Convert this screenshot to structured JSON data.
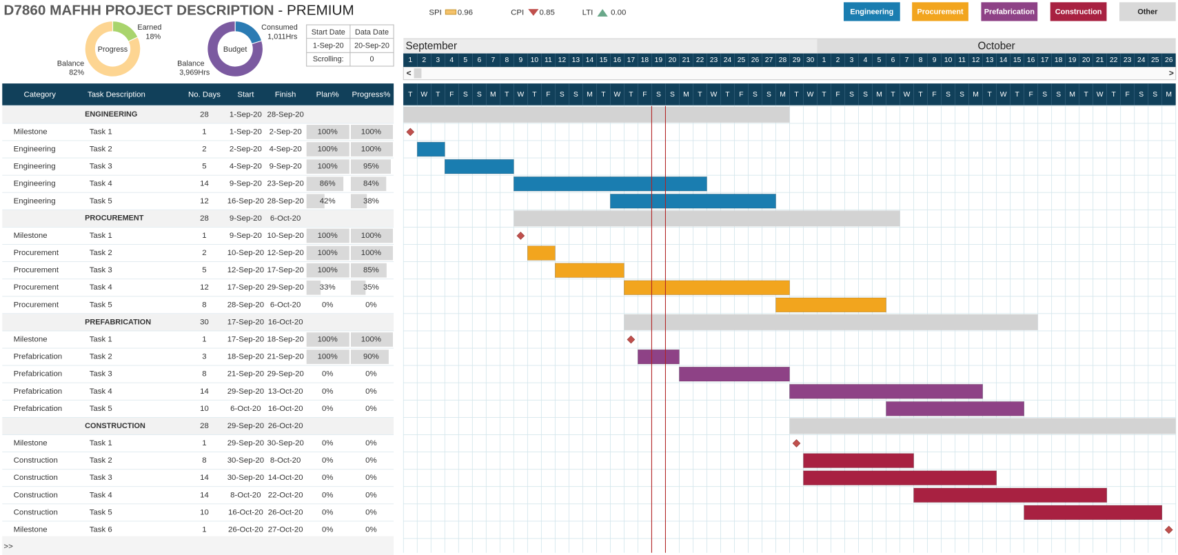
{
  "header": {
    "title": "D7860 MAFHH PROJECT DESCRIPTION",
    "edition": "- PREMIUM"
  },
  "kpis": [
    {
      "label": "SPI",
      "value": "0.96"
    },
    {
      "label": "CPI",
      "value": "0.85"
    },
    {
      "label": "LTI",
      "value": "0.00"
    }
  ],
  "legend": [
    {
      "label": "Engineering",
      "color": "#1a7db0",
      "text_color": "#ffffff"
    },
    {
      "label": "Procurement",
      "color": "#f2a51e",
      "text_color": "#ffffff"
    },
    {
      "label": "Prefabrication",
      "color": "#8e4286",
      "text_color": "#ffffff"
    },
    {
      "label": "Construction",
      "color": "#a82141",
      "text_color": "#ffffff"
    },
    {
      "label": "Other",
      "color": "#d9d9d9",
      "text_color": "#222222"
    }
  ],
  "progress": {
    "title": "Progress",
    "segments": [
      {
        "label": "Earned",
        "value": 18,
        "value_label": "18%",
        "color": "#a9d46c"
      },
      {
        "label": "Balance",
        "value": 82,
        "value_label": "82%",
        "color": "#fdd592"
      }
    ]
  },
  "budget": {
    "title": "Budget",
    "segments": [
      {
        "label": "Consumed",
        "value": 1011,
        "value_label": "1,011Hrs",
        "color": "#2b7bb3"
      },
      {
        "label": "Balance",
        "value": 3969,
        "value_label": "3,969Hrs",
        "color": "#7b5aa0"
      }
    ]
  },
  "info": {
    "headers": [
      "Start Date",
      "Data Date"
    ],
    "values": [
      "1-Sep-20",
      "20-Sep-20"
    ],
    "scrolling_label": "Scrolling:",
    "scrolling": "0"
  },
  "table": {
    "columns": [
      "Category",
      "Task Description",
      "No. Days",
      "Start",
      "Finish",
      "Plan%",
      "Progress%"
    ],
    "groups": [
      {
        "name": "ENGINEERING",
        "days": 28,
        "start": "1-Sep-20",
        "finish": "28-Sep-20",
        "color": "#1a7db0",
        "tasks": [
          {
            "category": "Milestone",
            "task": "Task 1",
            "days": 1,
            "start": "1-Sep-20",
            "finish": "2-Sep-20",
            "plan": "100%",
            "progress": "100%",
            "marker": "diamond"
          },
          {
            "category": "Engineering",
            "task": "Task 2",
            "days": 2,
            "start": "2-Sep-20",
            "finish": "4-Sep-20",
            "plan": "100%",
            "progress": "100%"
          },
          {
            "category": "Engineering",
            "task": "Task 3",
            "days": 5,
            "start": "4-Sep-20",
            "finish": "9-Sep-20",
            "plan": "100%",
            "progress": "95%"
          },
          {
            "category": "Engineering",
            "task": "Task 4",
            "days": 14,
            "start": "9-Sep-20",
            "finish": "23-Sep-20",
            "plan": "86%",
            "progress": "84%"
          },
          {
            "category": "Engineering",
            "task": "Task 5",
            "days": 12,
            "start": "16-Sep-20",
            "finish": "28-Sep-20",
            "plan": "42%",
            "progress": "38%"
          }
        ]
      },
      {
        "name": "PROCUREMENT",
        "days": 28,
        "start": "9-Sep-20",
        "finish": "6-Oct-20",
        "color": "#f2a51e",
        "tasks": [
          {
            "category": "Milestone",
            "task": "Task 1",
            "days": 1,
            "start": "9-Sep-20",
            "finish": "10-Sep-20",
            "plan": "100%",
            "progress": "100%",
            "marker": "diamond"
          },
          {
            "category": "Procurement",
            "task": "Task 2",
            "days": 2,
            "start": "10-Sep-20",
            "finish": "12-Sep-20",
            "plan": "100%",
            "progress": "100%"
          },
          {
            "category": "Procurement",
            "task": "Task 3",
            "days": 5,
            "start": "12-Sep-20",
            "finish": "17-Sep-20",
            "plan": "100%",
            "progress": "85%"
          },
          {
            "category": "Procurement",
            "task": "Task 4",
            "days": 12,
            "start": "17-Sep-20",
            "finish": "29-Sep-20",
            "plan": "33%",
            "progress": "35%"
          },
          {
            "category": "Procurement",
            "task": "Task 5",
            "days": 8,
            "start": "28-Sep-20",
            "finish": "6-Oct-20",
            "plan": "0%",
            "progress": "0%"
          }
        ]
      },
      {
        "name": "PREFABRICATION",
        "days": 30,
        "start": "17-Sep-20",
        "finish": "16-Oct-20",
        "color": "#8e4286",
        "tasks": [
          {
            "category": "Milestone",
            "task": "Task 1",
            "days": 1,
            "start": "17-Sep-20",
            "finish": "18-Sep-20",
            "plan": "100%",
            "progress": "100%",
            "marker": "diamond"
          },
          {
            "category": "Prefabrication",
            "task": "Task 2",
            "days": 3,
            "start": "18-Sep-20",
            "finish": "21-Sep-20",
            "plan": "100%",
            "progress": "90%"
          },
          {
            "category": "Prefabrication",
            "task": "Task 3",
            "days": 8,
            "start": "21-Sep-20",
            "finish": "29-Sep-20",
            "plan": "0%",
            "progress": "0%"
          },
          {
            "category": "Prefabrication",
            "task": "Task 4",
            "days": 14,
            "start": "29-Sep-20",
            "finish": "13-Oct-20",
            "plan": "0%",
            "progress": "0%"
          },
          {
            "category": "Prefabrication",
            "task": "Task 5",
            "days": 10,
            "start": "6-Oct-20",
            "finish": "16-Oct-20",
            "plan": "0%",
            "progress": "0%"
          }
        ]
      },
      {
        "name": "CONSTRUCTION",
        "days": 28,
        "start": "29-Sep-20",
        "finish": "26-Oct-20",
        "color": "#a82141",
        "tasks": [
          {
            "category": "Milestone",
            "task": "Task 1",
            "days": 1,
            "start": "29-Sep-20",
            "finish": "30-Sep-20",
            "plan": "0%",
            "progress": "0%",
            "marker": "diamond"
          },
          {
            "category": "Construction",
            "task": "Task 2",
            "days": 8,
            "start": "30-Sep-20",
            "finish": "8-Oct-20",
            "plan": "0%",
            "progress": "0%"
          },
          {
            "category": "Construction",
            "task": "Task 3",
            "days": 14,
            "start": "30-Sep-20",
            "finish": "14-Oct-20",
            "plan": "0%",
            "progress": "0%"
          },
          {
            "category": "Construction",
            "task": "Task 4",
            "days": 14,
            "start": "8-Oct-20",
            "finish": "22-Oct-20",
            "plan": "0%",
            "progress": "0%"
          },
          {
            "category": "Construction",
            "task": "Task 5",
            "days": 10,
            "start": "16-Oct-20",
            "finish": "26-Oct-20",
            "plan": "0%",
            "progress": "0%"
          },
          {
            "category": "Milestone",
            "task": "Task 6",
            "days": 1,
            "start": "26-Oct-20",
            "finish": "27-Oct-20",
            "plan": "0%",
            "progress": "0%",
            "marker": "diamond"
          }
        ]
      }
    ]
  },
  "gantt": {
    "months": [
      "September",
      "October"
    ],
    "day_numbers": [
      1,
      2,
      3,
      4,
      5,
      6,
      7,
      8,
      9,
      10,
      11,
      12,
      13,
      14,
      15,
      16,
      17,
      18,
      19,
      20,
      21,
      22,
      23,
      24,
      25,
      26,
      27,
      28,
      29,
      30,
      1,
      2,
      3,
      4,
      5,
      6,
      7,
      8,
      9,
      10,
      11,
      12,
      13,
      14,
      15,
      16,
      17,
      18,
      19,
      20,
      21,
      22,
      23,
      24,
      25,
      26
    ],
    "weekdays": [
      "T",
      "W",
      "T",
      "F",
      "S",
      "S",
      "M",
      "T",
      "W",
      "T",
      "F",
      "S",
      "S",
      "M",
      "T",
      "W",
      "T",
      "F",
      "S",
      "S",
      "M",
      "T",
      "W",
      "T",
      "F",
      "S",
      "S",
      "M",
      "T",
      "W",
      "T",
      "F",
      "S",
      "S",
      "M",
      "T",
      "W",
      "T",
      "F",
      "S",
      "S",
      "M",
      "T",
      "W",
      "T",
      "F",
      "S",
      "S",
      "M",
      "T",
      "W",
      "T",
      "F",
      "S",
      "S",
      "M"
    ],
    "group_color": "#d3d3d3",
    "milestone_color": "#c0504d",
    "today_color": "#b22222"
  },
  "footer": ">>"
}
